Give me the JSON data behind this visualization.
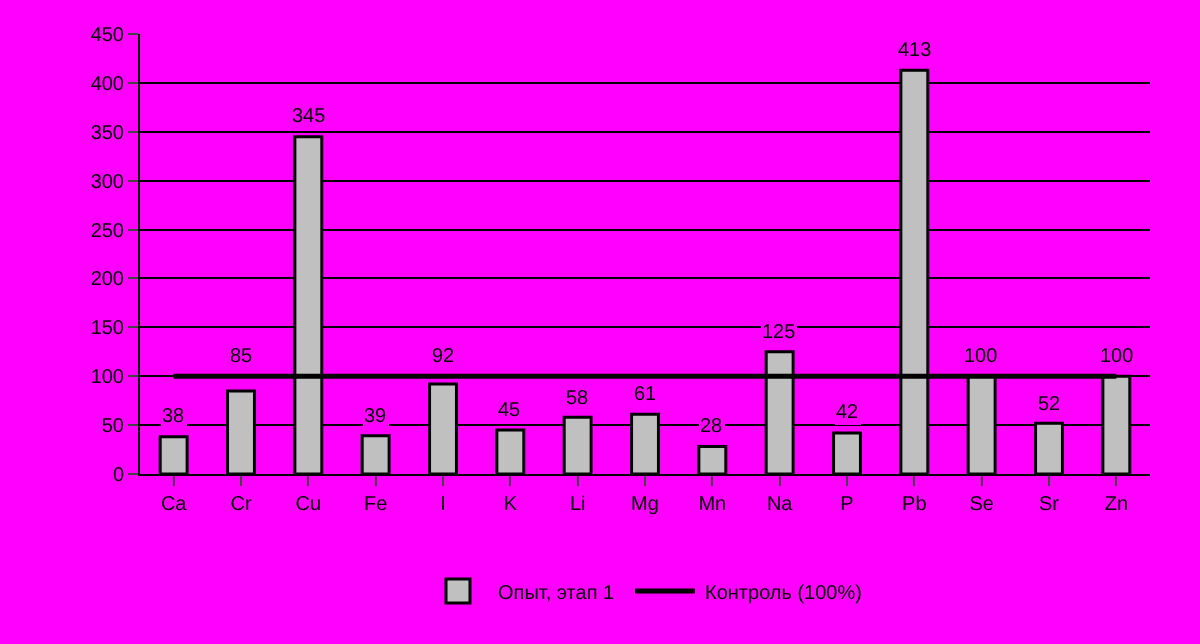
{
  "chart_data": {
    "type": "bar",
    "categories": [
      "Ca",
      "Cr",
      "Cu",
      "Fe",
      "I",
      "K",
      "Li",
      "Mg",
      "Mn",
      "Na",
      "P",
      "Pb",
      "Se",
      "Sr",
      "Zn"
    ],
    "series": [
      {
        "name": "Опыт, этап 1",
        "color": "#c0c0c0",
        "values": [
          38,
          85,
          345,
          39,
          92,
          45,
          58,
          61,
          28,
          125,
          42,
          413,
          100,
          52,
          100
        ],
        "data_labels": true
      },
      {
        "name": "Контроль (100%)",
        "type": "line",
        "color": "#000000",
        "marker": "none",
        "values": [
          100,
          100,
          100,
          100,
          100,
          100,
          100,
          100,
          100,
          100,
          100,
          100,
          100,
          100,
          100
        ]
      }
    ],
    "ylim": [
      0,
      450
    ],
    "yticks": [
      0,
      50,
      100,
      150,
      200,
      250,
      300,
      350,
      400,
      450
    ],
    "grid": "y",
    "legend": "bottom"
  }
}
